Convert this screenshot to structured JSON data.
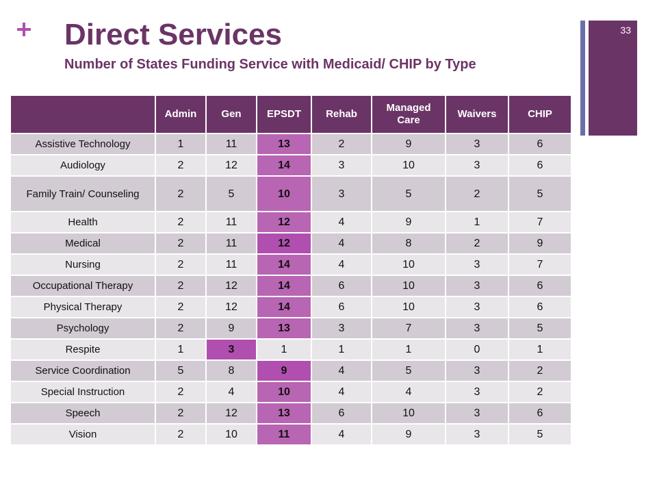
{
  "slide": {
    "title": "Direct Services",
    "subtitle": "Number of States Funding Service with Medicaid/ CHIP by Type",
    "number": "33"
  },
  "colors": {
    "header_bg": "#6b3466",
    "accent": "#b04fb0",
    "row_odd": "#d2cbd3",
    "row_even": "#e9e6ea"
  },
  "table": {
    "columns": [
      "",
      "Admin",
      "Gen",
      "EPSDT",
      "Rehab",
      "Managed Care",
      "Waivers",
      "CHIP"
    ],
    "rows": [
      [
        "Assistive Technology",
        "1",
        "11",
        "13",
        "2",
        "9",
        "3",
        "6"
      ],
      [
        "Audiology",
        "2",
        "12",
        "14",
        "3",
        "10",
        "3",
        "6"
      ],
      [
        "Family Train/ Counseling",
        "2",
        "5",
        "10",
        "3",
        "5",
        "2",
        "5"
      ],
      [
        "Health",
        "2",
        "11",
        "12",
        "4",
        "9",
        "1",
        "7"
      ],
      [
        "Medical",
        "2",
        "11",
        "12",
        "4",
        "8",
        "2",
        "9"
      ],
      [
        "Nursing",
        "2",
        "11",
        "14",
        "4",
        "10",
        "3",
        "7"
      ],
      [
        "Occupational Therapy",
        "2",
        "12",
        "14",
        "6",
        "10",
        "3",
        "6"
      ],
      [
        "Physical Therapy",
        "2",
        "12",
        "14",
        "6",
        "10",
        "3",
        "6"
      ],
      [
        "Psychology",
        "2",
        "9",
        "13",
        "3",
        "7",
        "3",
        "5"
      ],
      [
        "Respite",
        "1",
        "3",
        "1",
        "1",
        "1",
        "0",
        "1"
      ],
      [
        "Service Coordination",
        "5",
        "8",
        "9",
        "4",
        "5",
        "3",
        "2"
      ],
      [
        "Special Instruction",
        "2",
        "4",
        "10",
        "4",
        "4",
        "3",
        "2"
      ],
      [
        "Speech",
        "2",
        "12",
        "13",
        "6",
        "10",
        "3",
        "6"
      ],
      [
        "Vision",
        "2",
        "10",
        "11",
        "4",
        "9",
        "3",
        "5"
      ]
    ]
  }
}
